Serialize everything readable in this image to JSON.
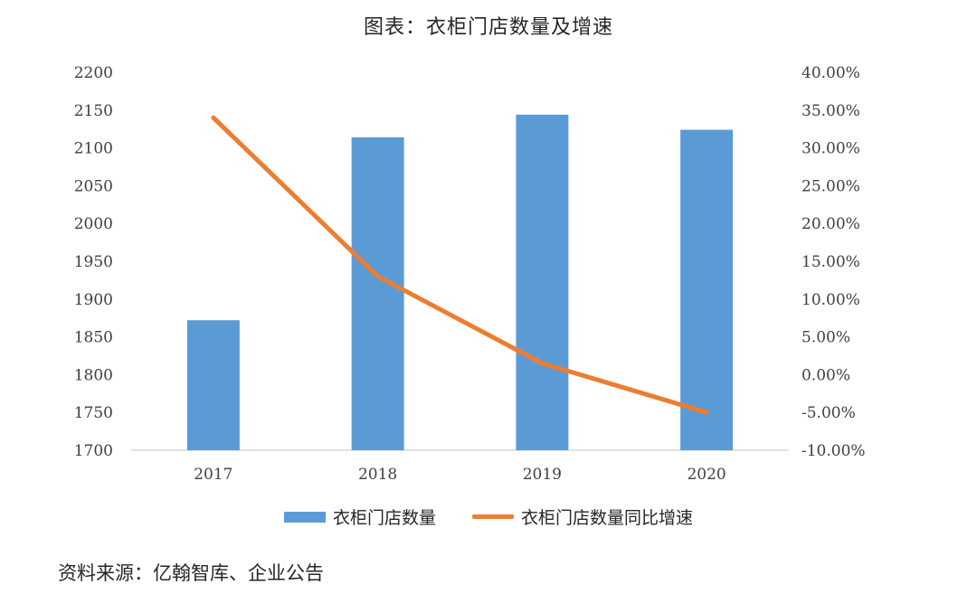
{
  "title": "图表：衣柜门店数量及增速",
  "source": "资料来源：亿翰智库、企业公告",
  "colors": {
    "bar": "#5b9bd5",
    "line": "#ed7d31"
  },
  "chart_data": {
    "type": "bar",
    "categories": [
      "2017",
      "2018",
      "2019",
      "2020"
    ],
    "series": [
      {
        "name": "衣柜门店数量",
        "type": "bar",
        "axis": "left",
        "values": [
          1872,
          2114,
          2144,
          2124
        ]
      },
      {
        "name": "衣柜门店数量同比增速",
        "type": "line",
        "axis": "right",
        "values": [
          34.0,
          13.0,
          1.5,
          -5.0
        ]
      }
    ],
    "ylim_left": [
      1700,
      2200
    ],
    "yticks_left": [
      "1700",
      "1750",
      "1800",
      "1850",
      "1900",
      "1950",
      "2000",
      "2050",
      "2100",
      "2150",
      "2200"
    ],
    "ylim_right": [
      -10,
      40
    ],
    "yticks_right": [
      "-10.00%",
      "-5.00%",
      "0.00%",
      "5.00%",
      "10.00%",
      "15.00%",
      "20.00%",
      "25.00%",
      "30.00%",
      "35.00%",
      "40.00%"
    ],
    "grid": false,
    "legend": "bottom"
  }
}
